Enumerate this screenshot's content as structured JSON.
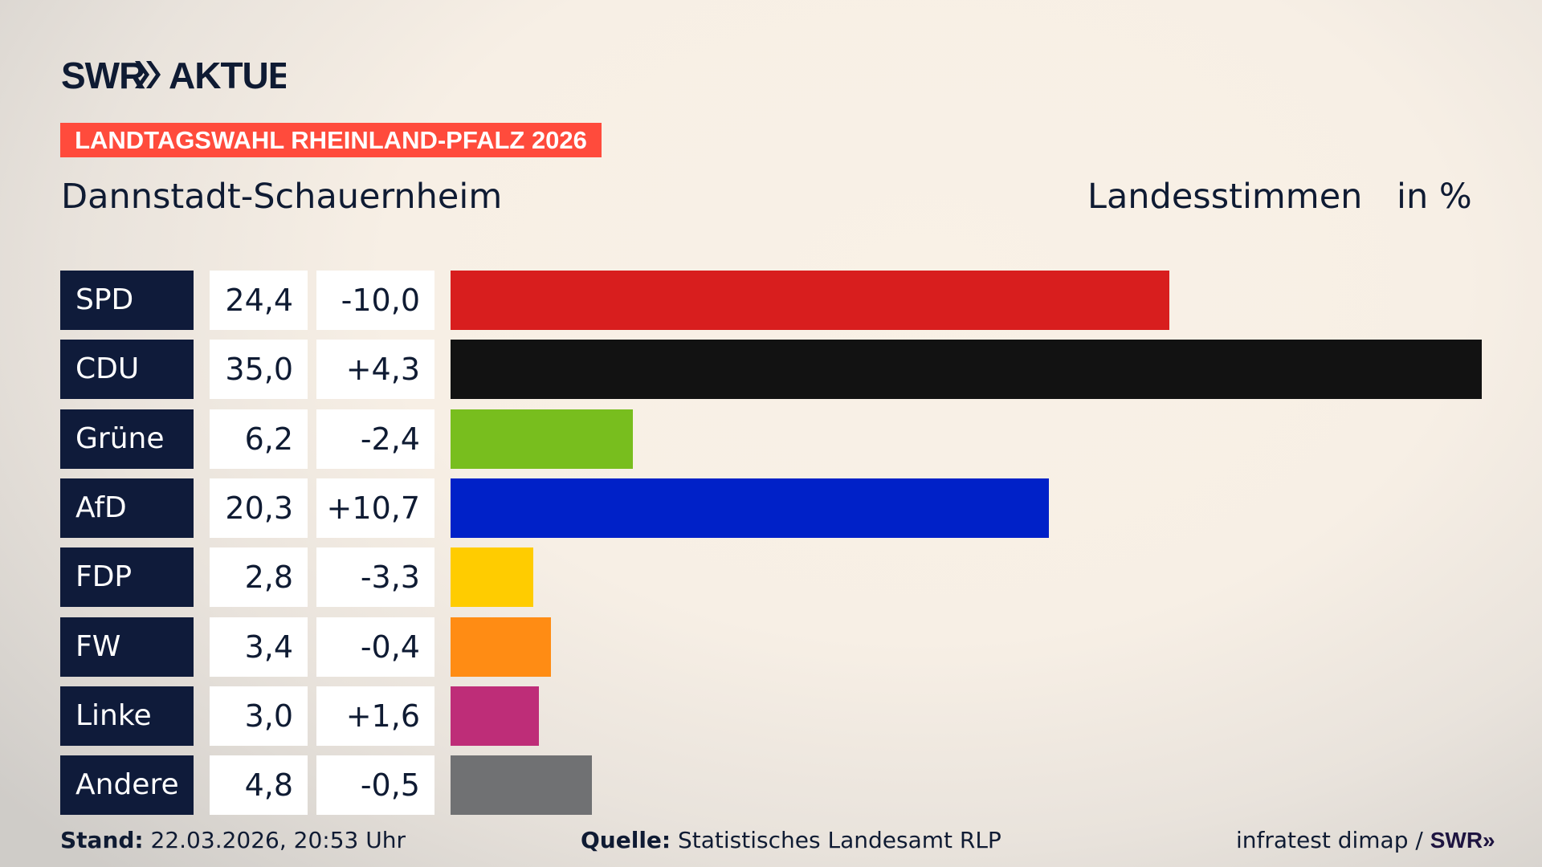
{
  "header": {
    "logo_text": "SWR» AKTUELL",
    "banner": "LANDTAGSWAHL RHEINLAND-PFALZ 2026",
    "subtitle": "Dannstadt-Schauernheim",
    "metric": "Landesstimmen",
    "unit": "in %"
  },
  "chart_data": {
    "type": "bar",
    "orientation": "horizontal",
    "categories": [
      "SPD",
      "CDU",
      "Grüne",
      "AfD",
      "FDP",
      "FW",
      "Linke",
      "Andere"
    ],
    "values": [
      24.4,
      35.0,
      6.2,
      20.3,
      2.8,
      3.4,
      3.0,
      4.8
    ],
    "value_labels": [
      "24,4",
      "35,0",
      "6,2",
      "20,3",
      "2,8",
      "3,4",
      "3,0",
      "4,8"
    ],
    "changes": [
      -10.0,
      4.3,
      -2.4,
      10.7,
      -3.3,
      -0.4,
      1.6,
      -0.5
    ],
    "change_labels": [
      "-10,0",
      "+4,3",
      "-2,4",
      "+10,7",
      "-3,3",
      "-0,4",
      "+1,6",
      "-0,5"
    ],
    "colors": [
      "#d81e1e",
      "#121212",
      "#78be1e",
      "#0021c8",
      "#ffcc00",
      "#ff8c14",
      "#be2d78",
      "#707173"
    ],
    "xlim": [
      0,
      35.0
    ],
    "grid": false
  },
  "footer": {
    "stand_label": "Stand:",
    "stand_value": "22.03.2026, 20:53 Uhr",
    "source_label": "Quelle:",
    "source_value": "Statistisches Landesamt RLP",
    "credit": "infratest dimap / ",
    "credit_logo": "SWR»"
  }
}
